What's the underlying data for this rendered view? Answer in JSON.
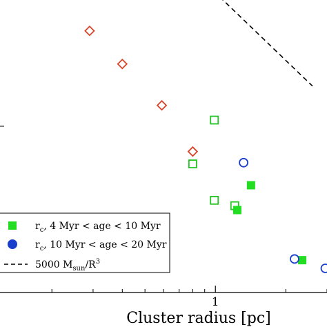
{
  "chart_data": {
    "type": "scatter",
    "xscale": "log",
    "yscale": "log",
    "xlabel": "Cluster radius [pc]",
    "xticks": [
      {
        "value": 1,
        "label": "1"
      }
    ],
    "xlim": [
      0.12,
      3.0
    ],
    "ylim": [
      0.5,
      4000
    ],
    "grid": false,
    "legend_position": "bottom-left",
    "series": [
      {
        "id": "hollow-diamond",
        "marker": "diamond-open",
        "color": "#d8442a",
        "points": [
          {
            "x": 0.29,
            "y": 1550
          },
          {
            "x": 0.4,
            "y": 560
          },
          {
            "x": 0.59,
            "y": 157
          },
          {
            "x": 0.8,
            "y": 38
          }
        ]
      },
      {
        "id": "hollow-square",
        "marker": "square-open",
        "color": "#22c522",
        "points": [
          {
            "x": 0.8,
            "y": 26
          },
          {
            "x": 0.99,
            "y": 100
          },
          {
            "x": 0.99,
            "y": 8.5
          },
          {
            "x": 1.21,
            "y": 7.2
          }
        ]
      },
      {
        "id": "filled-square",
        "name": "r_c, 4 Myr < age < 10 Myr",
        "marker": "square-filled",
        "color": "#22dd22",
        "points": [
          {
            "x": 1.24,
            "y": 6.3
          },
          {
            "x": 1.42,
            "y": 13.5
          },
          {
            "x": 2.35,
            "y": 1.35
          }
        ]
      },
      {
        "id": "hollow-circle",
        "name": "r_c, 10 Myr < age < 20 Myr",
        "marker": "circle-open",
        "color": "#1a3fcc",
        "points": [
          {
            "x": 1.32,
            "y": 27
          },
          {
            "x": 2.18,
            "y": 1.4
          },
          {
            "x": 2.95,
            "y": 1.05
          }
        ]
      }
    ],
    "model_line": {
      "name": "5000 M_sun/R^3",
      "style": "dashed",
      "color": "#000000",
      "normalization": 5000,
      "power": -3,
      "x_range": [
        0.19,
        2.6
      ]
    },
    "legend": [
      {
        "marker": "square-filled",
        "color": "#22dd22",
        "prefix": "r",
        "sub": "c",
        "suffix": ", 4 Myr < age < 10 Myr"
      },
      {
        "marker": "circle-filled",
        "color": "#1a3fcc",
        "prefix": "r",
        "sub": "c",
        "suffix": ", 10 Myr < age < 20 Myr"
      },
      {
        "marker": "dashed-line",
        "color": "#000000",
        "prefix": "5000 M",
        "sub": "sun",
        "suffix": "/R",
        "sup": "3"
      }
    ]
  }
}
